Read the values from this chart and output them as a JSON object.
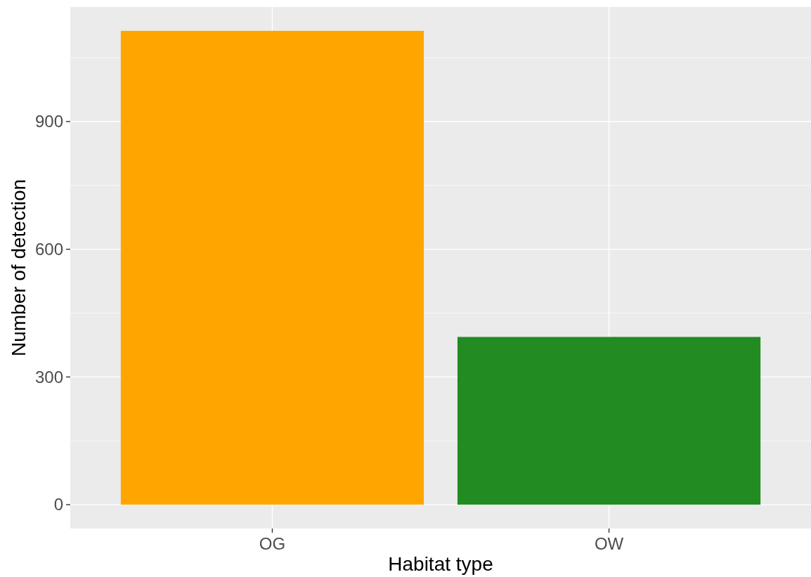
{
  "chart_data": {
    "type": "bar",
    "xlabel": "Habitat type",
    "ylabel": "Number of detection",
    "categories": [
      "OG",
      "OW"
    ],
    "values": [
      1113,
      394
    ],
    "colors": [
      "#ffa500",
      "#228b22"
    ],
    "ylim": [
      -56,
      1169
    ],
    "yticks": [
      0,
      300,
      600,
      900
    ],
    "grid": true
  }
}
